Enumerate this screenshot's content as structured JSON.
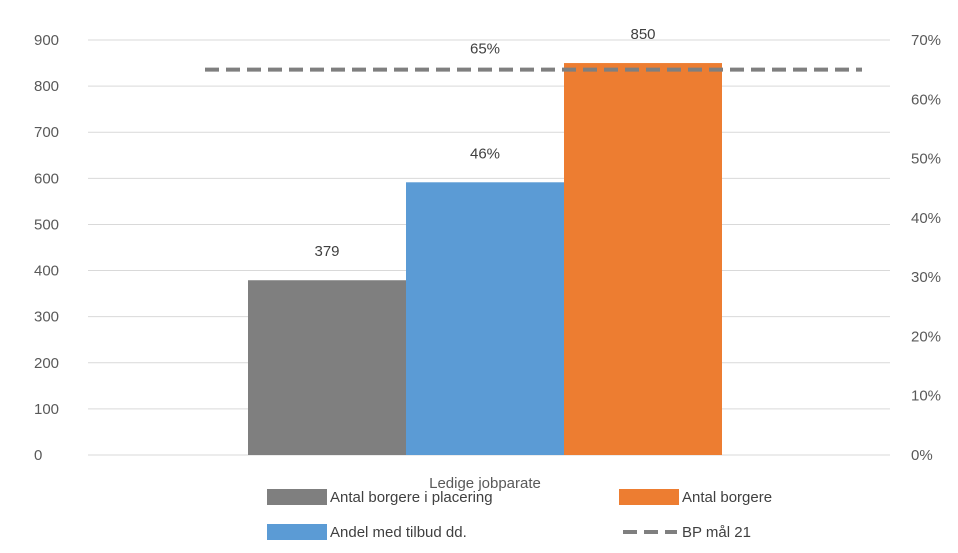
{
  "chart_data": {
    "type": "bar",
    "categories": [
      "Ledige jobparate"
    ],
    "series": [
      {
        "name": "Antal borgere i placering",
        "values": [
          379
        ],
        "axis": "left",
        "color": "#7f7f7f",
        "data_label": "379"
      },
      {
        "name": "Andel med tilbud dd.",
        "values": [
          0.46
        ],
        "axis": "right",
        "color": "#5b9bd5",
        "data_label": "46%"
      },
      {
        "name": "Antal borgere",
        "values": [
          850
        ],
        "axis": "left",
        "color": "#ed7d31",
        "data_label": "850"
      },
      {
        "name": "BP mål 21",
        "type": "line",
        "style": "dashed",
        "values": [
          0.65
        ],
        "axis": "right",
        "color": "#7f7f7f",
        "data_label": "65%"
      }
    ],
    "y_left": {
      "min": 0,
      "max": 900,
      "step": 100,
      "ticks": [
        "0",
        "100",
        "200",
        "300",
        "400",
        "500",
        "600",
        "700",
        "800",
        "900"
      ]
    },
    "y_right": {
      "min": 0,
      "max": 0.7,
      "step": 0.1,
      "ticks": [
        "0%",
        "10%",
        "20%",
        "30%",
        "40%",
        "50%",
        "60%",
        "70%"
      ]
    },
    "grid": true,
    "legend_position": "bottom",
    "title": "",
    "xlabel": "",
    "ylabel": ""
  }
}
